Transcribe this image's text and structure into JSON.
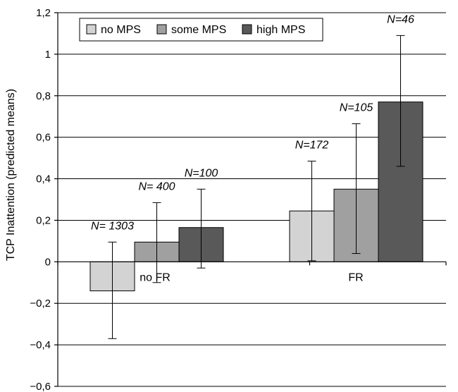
{
  "chart_data": {
    "type": "bar",
    "title": "",
    "xlabel": "",
    "ylabel": "TCP Inattention (predicted means)",
    "ylim": [
      -0.6,
      1.2
    ],
    "yticks": [
      -0.6,
      -0.4,
      -0.2,
      0,
      0.2,
      0.4,
      0.6,
      0.8,
      1,
      1.2
    ],
    "ytick_labels": [
      "−0,6",
      "−0,4",
      "−0,2",
      "0",
      "0,2",
      "0,4",
      "0,6",
      "0,8",
      "1",
      "1,2"
    ],
    "grid": true,
    "legend_position": "top-left",
    "categories": [
      "no FR",
      "FR"
    ],
    "series": [
      {
        "name": "no MPS",
        "color": "#d3d3d3",
        "values": [
          -0.14,
          0.245
        ],
        "error_low": [
          -0.37,
          0.005
        ],
        "error_high": [
          0.095,
          0.485
        ],
        "n_labels": [
          "N= 1303",
          "N=172"
        ]
      },
      {
        "name": "some MPS",
        "color": "#a0a0a0",
        "values": [
          0.095,
          0.35
        ],
        "error_low": [
          -0.1,
          0.04
        ],
        "error_high": [
          0.285,
          0.665
        ],
        "n_labels": [
          "N= 400",
          "N=105"
        ]
      },
      {
        "name": "high MPS",
        "color": "#595959",
        "values": [
          0.165,
          0.77
        ],
        "error_low": [
          -0.03,
          0.46
        ],
        "error_high": [
          0.35,
          1.09
        ],
        "n_labels": [
          "N=100",
          "N=46"
        ]
      }
    ]
  }
}
